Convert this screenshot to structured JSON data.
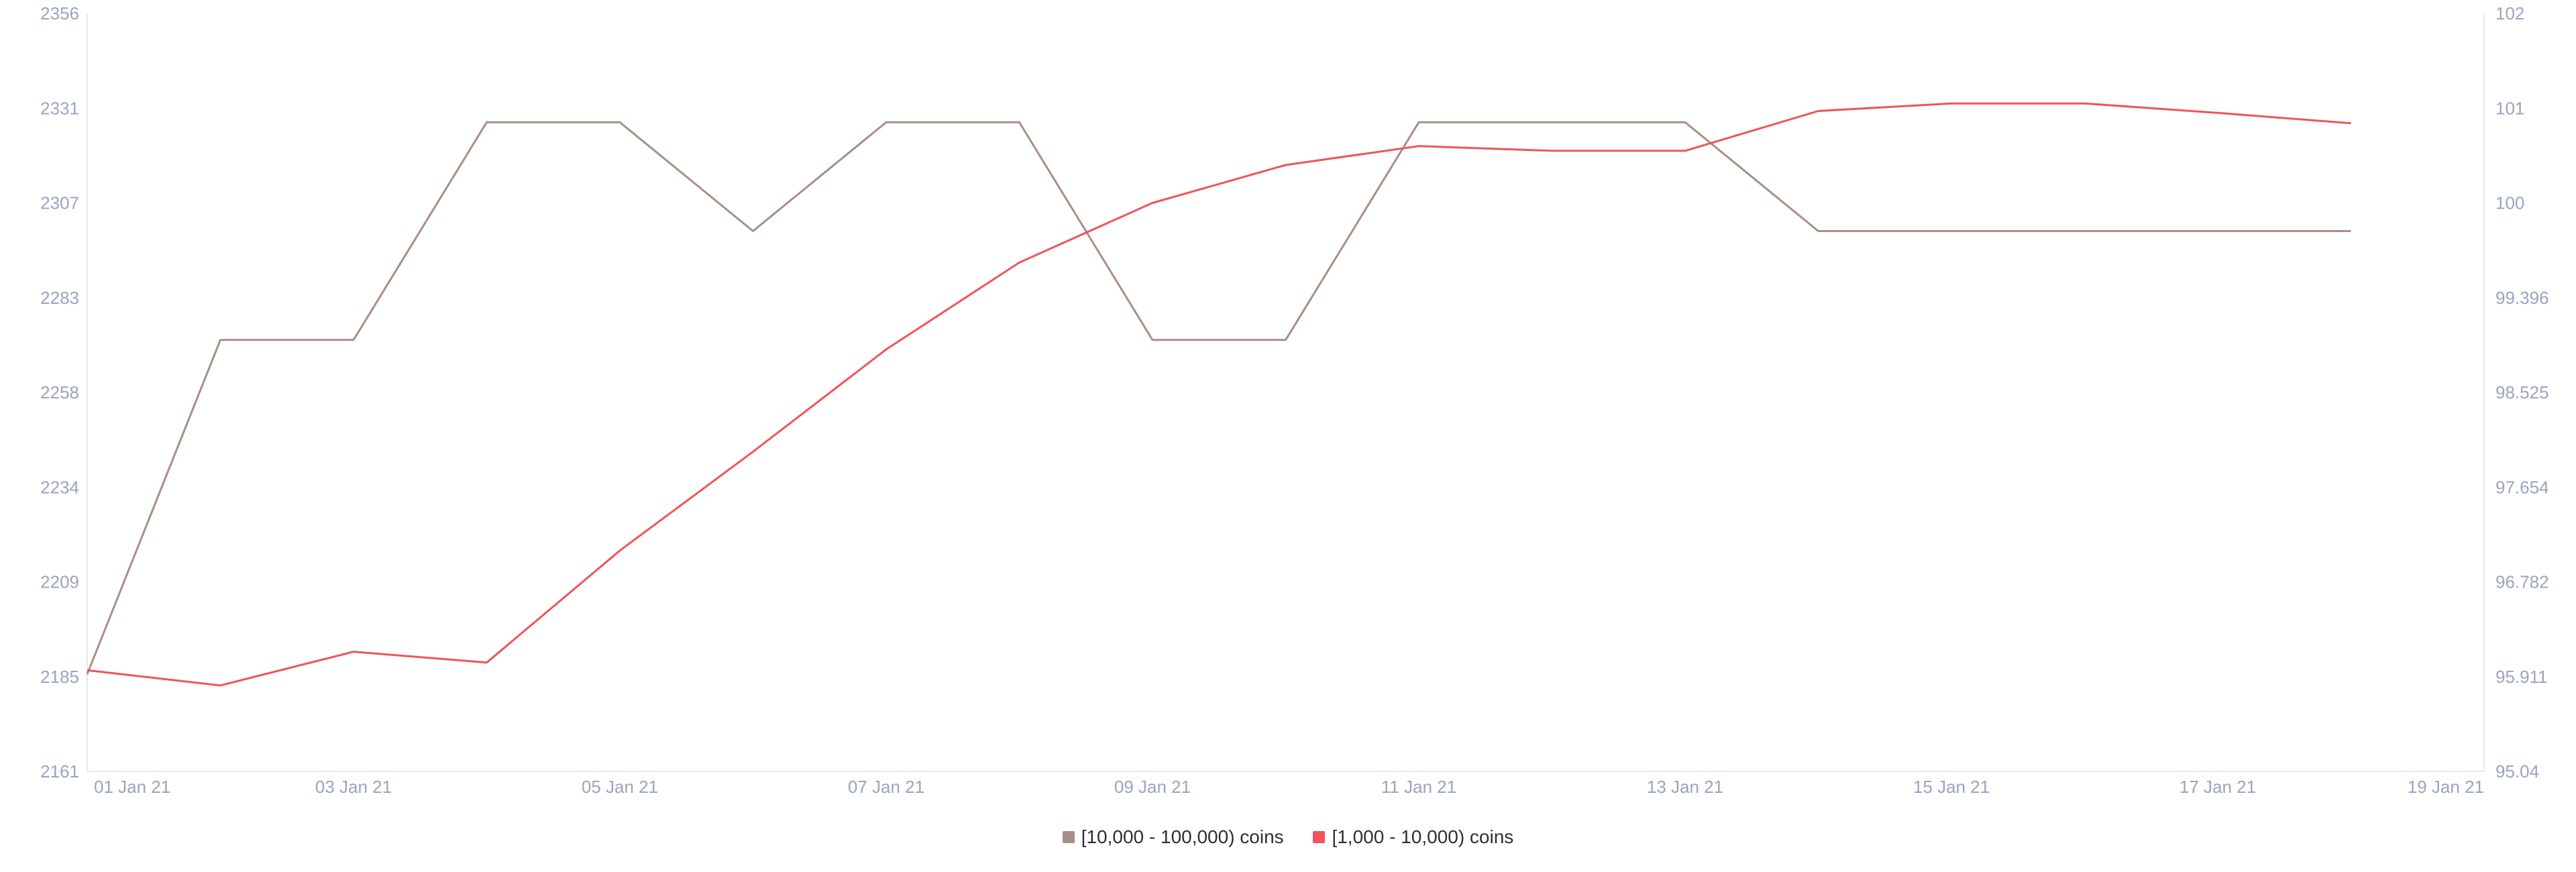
{
  "chart_data": {
    "type": "line",
    "x": [
      "2021-01-01",
      "2021-01-02",
      "2021-01-03",
      "2021-01-04",
      "2021-01-05",
      "2021-01-06",
      "2021-01-07",
      "2021-01-08",
      "2021-01-09",
      "2021-01-10",
      "2021-01-11",
      "2021-01-12",
      "2021-01-13",
      "2021-01-14",
      "2021-01-15",
      "2021-01-16",
      "2021-01-17",
      "2021-01-18"
    ],
    "x_tick_labels": [
      "01 Jan 21",
      "03 Jan 21",
      "05 Jan 21",
      "07 Jan 21",
      "09 Jan 21",
      "11 Jan 21",
      "13 Jan 21",
      "15 Jan 21",
      "17 Jan 21",
      "19 Jan 21"
    ],
    "x_tick_dates": [
      "2021-01-01",
      "2021-01-03",
      "2021-01-05",
      "2021-01-07",
      "2021-01-09",
      "2021-01-11",
      "2021-01-13",
      "2021-01-15",
      "2021-01-17",
      "2021-01-19"
    ],
    "xlim": [
      "2021-01-01",
      "2021-01-19"
    ],
    "y_left": {
      "ticks": [
        "2161",
        "2185",
        "2209",
        "2234",
        "2258",
        "2283",
        "2307",
        "2331",
        "2356"
      ],
      "ylim": [
        2161,
        2356
      ]
    },
    "y_right": {
      "ticks": [
        "95.04",
        "95.911",
        "96.782",
        "97.654",
        "98.525",
        "99.396",
        "100",
        "101",
        "102"
      ]
    },
    "series": [
      {
        "name": "[10,000 - 100,000) coins",
        "color": "#a88f86",
        "axis": "left",
        "values": [
          2186,
          2272,
          2272,
          2328,
          2328,
          2300,
          2328,
          2328,
          2272,
          2272,
          2328,
          2328,
          2328,
          2300,
          2300,
          2300,
          2300,
          2300
        ]
      },
      {
        "name": "[1,000 - 10,000) coins",
        "color": "#f0545a",
        "axis": "right",
        "values": [
          95.97,
          95.83,
          96.14,
          96.04,
          97.07,
          97.98,
          98.92,
          99.62,
          100.0,
          100.4,
          100.6,
          100.55,
          100.55,
          100.97,
          101.05,
          101.05,
          100.95,
          100.84
        ]
      }
    ],
    "grid": false,
    "legend_position": "bottom-center"
  }
}
